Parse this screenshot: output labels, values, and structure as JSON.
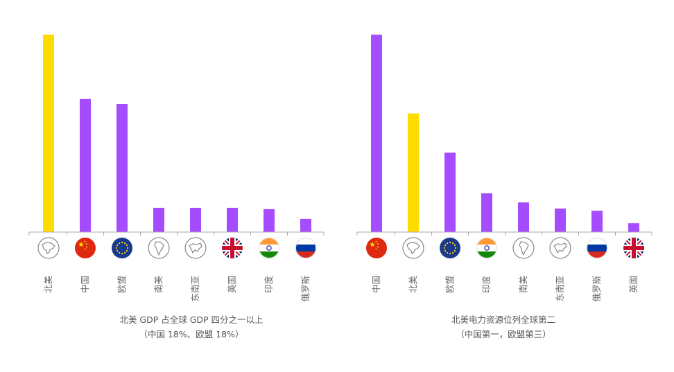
{
  "colors": {
    "highlight": "#FFDC00",
    "default": "#A54CFF",
    "axis": "#AAAAAA"
  },
  "chart_data": [
    {
      "type": "bar",
      "categories": [
        "北美",
        "中国",
        "欧盟",
        "南美",
        "东南亚",
        "英国",
        "印度",
        "俄罗斯"
      ],
      "icons": [
        "north-america-icon",
        "china-flag-icon",
        "eu-flag-icon",
        "south-america-icon",
        "southeast-asia-icon",
        "uk-flag-icon",
        "india-flag-icon",
        "russia-flag-icon"
      ],
      "values": [
        100,
        67.4,
        64.9,
        12.3,
        12.3,
        12.3,
        11.6,
        6.7
      ],
      "highlight_index": 0,
      "ylim": [
        0,
        100
      ],
      "caption_line1": "北美 GDP 占全球 GDP 四分之一以上",
      "caption_line2": "（中国 18%、欧盟 18%）"
    },
    {
      "type": "bar",
      "categories": [
        "中国",
        "北美",
        "欧盟",
        "印度",
        "南美",
        "东南亚",
        "俄罗斯",
        "英国"
      ],
      "icons": [
        "china-flag-icon",
        "north-america-icon",
        "eu-flag-icon",
        "india-flag-icon",
        "south-america-icon",
        "southeast-asia-icon",
        "russia-flag-icon",
        "uk-flag-icon"
      ],
      "values": [
        100,
        60.1,
        40.2,
        19.6,
        15.0,
        11.9,
        10.8,
        4.5
      ],
      "highlight_index": 1,
      "ylim": [
        0,
        100
      ],
      "caption_line1": "北美电力资源位列全球第二",
      "caption_line2": "（中国第一，欧盟第三）"
    }
  ]
}
